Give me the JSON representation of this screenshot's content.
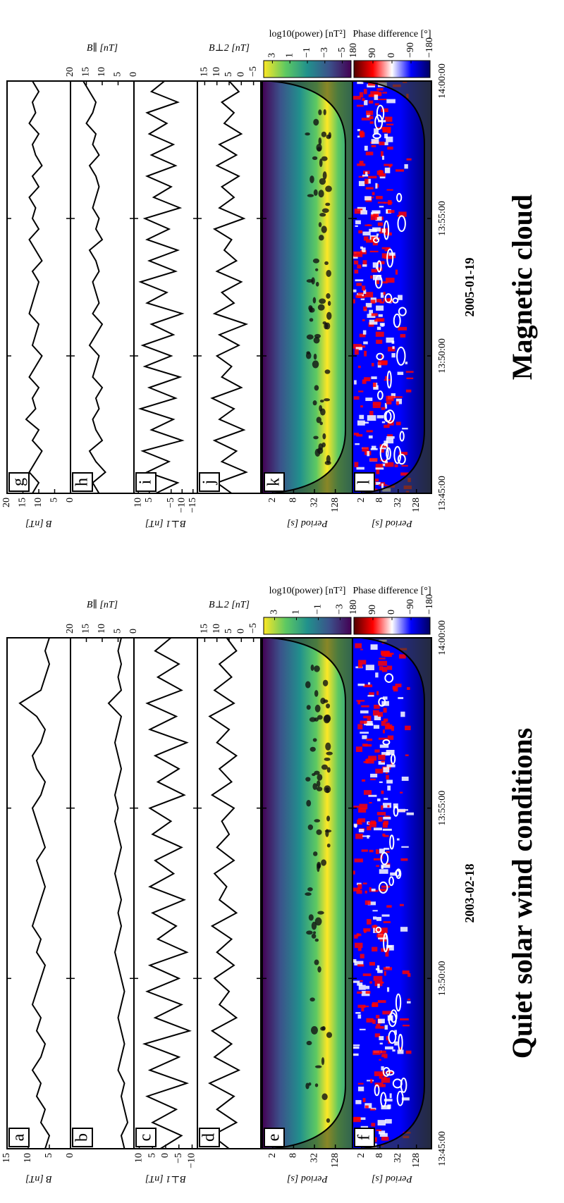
{
  "chart_data": [
    {
      "type": "timeseries",
      "title": "Quiet solar wind conditions",
      "date": "2003-02-18",
      "xticks": [
        "13:45:00",
        "13:50:00",
        "13:55:00",
        "14:00:00"
      ],
      "panels": [
        {
          "type": "line",
          "label": "a",
          "ylabel": "B [nT]",
          "side": "left",
          "color": "#000000",
          "ylim": [
            0,
            15
          ],
          "yticks": [
            0,
            5,
            10,
            15
          ],
          "values": [
            6,
            5,
            7,
            6,
            8,
            7,
            9,
            7,
            6,
            8,
            7,
            9,
            8,
            7,
            6,
            8,
            7,
            9,
            8,
            7,
            6,
            7,
            8,
            6,
            7,
            8,
            9,
            7,
            6,
            8,
            9,
            7,
            6,
            8,
            12,
            7,
            6,
            5,
            6,
            5
          ]
        },
        {
          "type": "line",
          "label": "b",
          "ylabel": "B∥ [nT]",
          "side": "right",
          "color": "#000000",
          "ylim": [
            0,
            20
          ],
          "yticks": [
            0,
            5,
            10,
            15,
            20
          ],
          "values": [
            3,
            4,
            2,
            3,
            4,
            3,
            5,
            4,
            3,
            4,
            5,
            4,
            3,
            4,
            5,
            6,
            5,
            4,
            5,
            4,
            5,
            6,
            5,
            4,
            5,
            6,
            5,
            6,
            5,
            4,
            5,
            6,
            5,
            4,
            8,
            4,
            5,
            4,
            5,
            4
          ]
        },
        {
          "type": "line",
          "label": "c",
          "ylabel": "B⊥1 [nT]",
          "side": "left",
          "color": "#000000",
          "ylim": [
            -12,
            12
          ],
          "yticks": [
            {
              "value": -10,
              "label": "−10"
            },
            {
              "value": -5,
              "label": "−5"
            },
            0,
            5,
            10
          ],
          "values": [
            2,
            -6,
            5,
            -4,
            7,
            -8,
            6,
            -5,
            8,
            -9,
            4,
            -6,
            7,
            -5,
            6,
            -8,
            3,
            -4,
            5,
            -7,
            6,
            -3,
            4,
            -6,
            5,
            -2,
            6,
            -7,
            3,
            -5,
            4,
            -8,
            6,
            -4,
            7,
            -6,
            3,
            -5,
            4,
            -2
          ]
        },
        {
          "type": "line",
          "label": "d",
          "ylabel": "B⊥2 [nT]",
          "side": "right",
          "color": "#000000",
          "ylim": [
            -8,
            18
          ],
          "yticks": [
            {
              "value": -5,
              "label": "−5"
            },
            0,
            5,
            10,
            15
          ],
          "values": [
            5,
            12,
            2,
            10,
            3,
            13,
            1,
            11,
            4,
            12,
            2,
            9,
            5,
            11,
            3,
            10,
            4,
            12,
            2,
            9,
            6,
            11,
            3,
            10,
            5,
            8,
            3,
            12,
            4,
            9,
            2,
            10,
            5,
            13,
            3,
            11,
            4,
            9,
            2,
            6
          ]
        },
        {
          "type": "wavelet",
          "label": "e",
          "ylabel": "Period [s]",
          "log": true,
          "ylim": [
            1,
            400
          ],
          "yticks": [
            2,
            8,
            32,
            128
          ],
          "colorbar": {
            "label": "log10(power) [nT²]",
            "ylim": [
              -4,
              4
            ],
            "yticks": [
              {
                "value": -3,
                "label": "−3"
              },
              {
                "value": -1,
                "label": "−1"
              },
              1,
              3
            ],
            "colors": [
              "#440154",
              "#3b528b",
              "#21918c",
              "#5ec962",
              "#fde725"
            ]
          }
        },
        {
          "type": "phase",
          "label": "f",
          "ylabel": "Period [s]",
          "log": true,
          "ylim": [
            1,
            400
          ],
          "yticks": [
            2,
            8,
            32,
            128
          ],
          "colorbar": {
            "label": "Phase difference [°]",
            "ylim": [
              -180,
              180
            ],
            "yticks": [
              {
                "value": -180,
                "label": "−180"
              },
              {
                "value": -90,
                "label": "−90"
              },
              0,
              90,
              180
            ],
            "colors": [
              "#000060",
              "#0000ff",
              "#ffffff",
              "#ff0000",
              "#500000"
            ]
          }
        }
      ]
    },
    {
      "type": "timeseries",
      "title": "Magnetic cloud",
      "date": "2005-01-19",
      "xticks": [
        "13:45:00",
        "13:50:00",
        "13:55:00",
        "14:00:00"
      ],
      "panels": [
        {
          "type": "line",
          "label": "g",
          "ylabel": "B [nT]",
          "side": "left",
          "color": "#000000",
          "ylim": [
            0,
            20
          ],
          "yticks": [
            0,
            5,
            10,
            15,
            20
          ],
          "values": [
            12,
            10,
            13,
            11,
            9,
            12,
            10,
            14,
            11,
            12,
            10,
            13,
            11,
            9,
            12,
            11,
            10,
            13,
            12,
            11,
            10,
            12,
            9,
            11,
            13,
            10,
            12,
            11,
            13,
            10,
            12,
            9,
            11,
            12,
            10,
            13,
            11,
            12,
            10,
            12
          ]
        },
        {
          "type": "line",
          "label": "h",
          "ylabel": "B∥ [nT]",
          "side": "right",
          "color": "#000000",
          "ylim": [
            0,
            20
          ],
          "yticks": [
            0,
            5,
            10,
            15,
            20
          ],
          "values": [
            11,
            13,
            9,
            12,
            14,
            10,
            12,
            13,
            11,
            12,
            10,
            13,
            12,
            11,
            14,
            12,
            10,
            13,
            11,
            12,
            13,
            11,
            12,
            14,
            10,
            12,
            11,
            13,
            12,
            11,
            12,
            14,
            11,
            13,
            12,
            15,
            13,
            12,
            14,
            16
          ]
        },
        {
          "type": "line",
          "label": "i",
          "ylabel": "B⊥1 [nT]",
          "side": "left",
          "color": "#000000",
          "ylim": [
            -17,
            12
          ],
          "yticks": [
            {
              "value": -15,
              "label": "−15"
            },
            {
              "value": -10,
              "label": "−10"
            },
            {
              "value": -5,
              "label": "−5"
            },
            5,
            10
          ],
          "values": [
            2,
            -8,
            6,
            -4,
            8,
            -10,
            4,
            -6,
            9,
            -7,
            5,
            -9,
            7,
            -5,
            8,
            -6,
            4,
            -10,
            6,
            -3,
            9,
            -7,
            5,
            -8,
            6,
            -4,
            7,
            -9,
            3,
            -5,
            6,
            -7,
            4,
            -6,
            5,
            -3,
            6,
            -8,
            4,
            -2
          ]
        },
        {
          "type": "line",
          "label": "j",
          "ylabel": "B⊥2 [nT]",
          "side": "right",
          "color": "#000000",
          "ylim": [
            -8,
            18
          ],
          "yticks": [
            {
              "value": -5,
              "label": "−5"
            },
            0,
            5,
            10,
            15
          ],
          "values": [
            4,
            10,
            -2,
            8,
            2,
            11,
            -1,
            9,
            3,
            12,
            0,
            8,
            4,
            10,
            1,
            9,
            -2,
            11,
            3,
            8,
            0,
            10,
            2,
            7,
            4,
            11,
            -1,
            9,
            3,
            8,
            1,
            10,
            2,
            9,
            0,
            7,
            3,
            8,
            1,
            5
          ]
        },
        {
          "type": "wavelet",
          "label": "k",
          "ylabel": "Period [s]",
          "log": true,
          "ylim": [
            1,
            400
          ],
          "yticks": [
            2,
            8,
            32,
            128
          ],
          "colorbar": {
            "label": "log10(power) [nT²]",
            "ylim": [
              -6,
              4
            ],
            "yticks": [
              {
                "value": -5,
                "label": "−5"
              },
              {
                "value": -3,
                "label": "−3"
              },
              {
                "value": -1,
                "label": "−1"
              },
              1,
              3
            ],
            "colors": [
              "#440154",
              "#3b528b",
              "#21918c",
              "#5ec962",
              "#fde725"
            ]
          }
        },
        {
          "type": "phase",
          "label": "l",
          "ylabel": "Period [s]",
          "log": true,
          "ylim": [
            1,
            400
          ],
          "yticks": [
            2,
            8,
            32,
            128
          ],
          "colorbar": {
            "label": "Phase difference [°]",
            "ylim": [
              -180,
              180
            ],
            "yticks": [
              {
                "value": -180,
                "label": "−180"
              },
              {
                "value": -90,
                "label": "−90"
              },
              0,
              90,
              180
            ],
            "colors": [
              "#000060",
              "#0000ff",
              "#ffffff",
              "#ff0000",
              "#500000"
            ]
          }
        }
      ]
    }
  ]
}
